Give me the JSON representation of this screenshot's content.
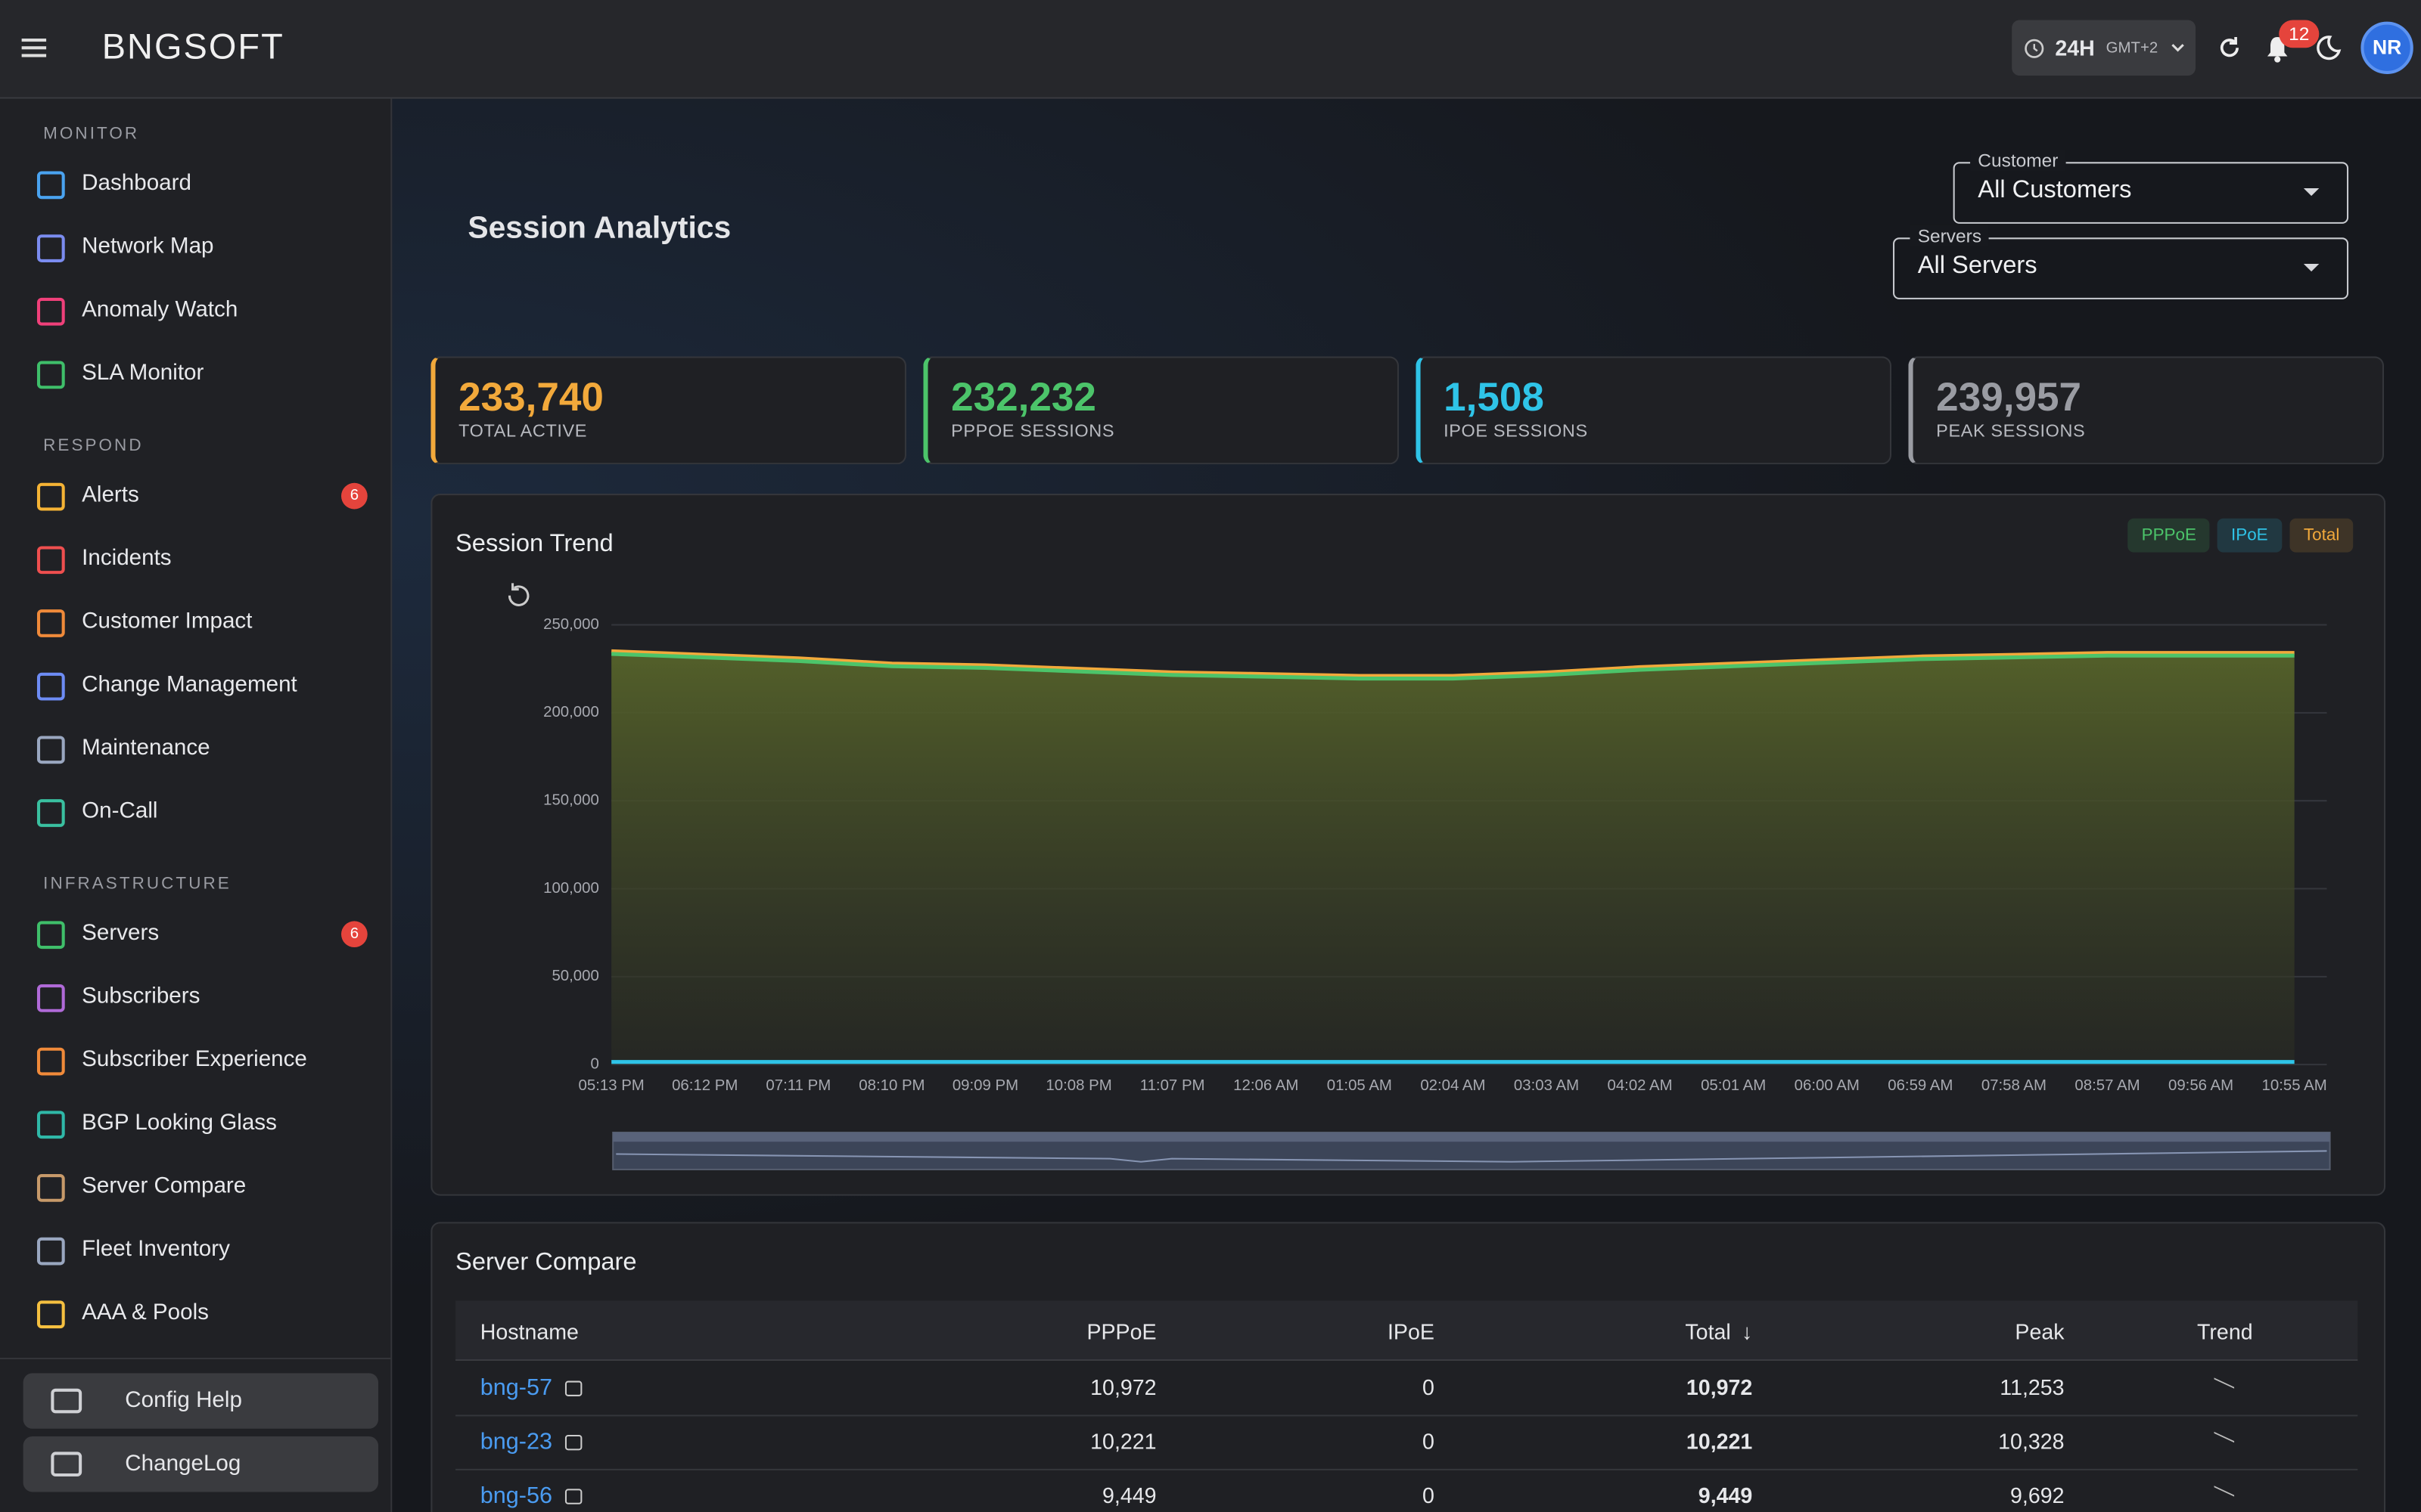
{
  "header": {
    "logo": "BNGSOFT",
    "time_range": "24H",
    "timezone": "GMT+2",
    "notifications": "12",
    "avatar": "NR"
  },
  "sidebar": {
    "sections": [
      {
        "title": "MONITOR",
        "items": [
          {
            "label": "Dashboard"
          },
          {
            "label": "Network Map"
          },
          {
            "label": "Anomaly Watch"
          },
          {
            "label": "SLA Monitor"
          }
        ]
      },
      {
        "title": "RESPOND",
        "items": [
          {
            "label": "Alerts",
            "badge": "6"
          },
          {
            "label": "Incidents"
          },
          {
            "label": "Customer Impact"
          },
          {
            "label": "Change Management"
          },
          {
            "label": "Maintenance"
          },
          {
            "label": "On-Call"
          }
        ]
      },
      {
        "title": "INFRASTRUCTURE",
        "items": [
          {
            "label": "Servers",
            "badge": "6"
          },
          {
            "label": "Subscribers"
          },
          {
            "label": "Subscriber Experience"
          },
          {
            "label": "BGP Looking Glass"
          },
          {
            "label": "Server Compare"
          },
          {
            "label": "Fleet Inventory"
          },
          {
            "label": "AAA & Pools"
          }
        ]
      }
    ],
    "footer": [
      "Config Help",
      "ChangeLog"
    ]
  },
  "page": {
    "title": "Session Analytics",
    "filters": [
      {
        "label": "Customer",
        "value": "All Customers"
      },
      {
        "label": "Servers",
        "value": "All Servers"
      }
    ]
  },
  "stats": [
    {
      "value": "233,740",
      "label": "TOTAL ACTIVE",
      "color": "#f2a93b"
    },
    {
      "value": "232,232",
      "label": "PPPOE SESSIONS",
      "color": "#4cc46a"
    },
    {
      "value": "1,508",
      "label": "IPOE SESSIONS",
      "color": "#2fc4e8"
    },
    {
      "value": "239,957",
      "label": "PEAK SESSIONS",
      "color": "#9a9ca3"
    }
  ],
  "chart_data": {
    "type": "line",
    "title": "Session Trend",
    "categories": [
      "05:13 PM",
      "06:12 PM",
      "07:11 PM",
      "08:10 PM",
      "09:09 PM",
      "10:08 PM",
      "11:07 PM",
      "12:06 AM",
      "01:05 AM",
      "02:04 AM",
      "03:03 AM",
      "04:02 AM",
      "05:01 AM",
      "06:00 AM",
      "06:59 AM",
      "07:58 AM",
      "08:57 AM",
      "09:56 AM",
      "10:55 AM"
    ],
    "series": [
      {
        "name": "PPPoE",
        "color": "#4cc46a",
        "values": [
          233500,
          231500,
          229500,
          226500,
          225500,
          223500,
          221500,
          220500,
          219500,
          219500,
          221500,
          224500,
          226500,
          228500,
          230500,
          231500,
          232500,
          232500,
          232500
        ]
      },
      {
        "name": "IPoE",
        "color": "#2fc4e8",
        "values": [
          1500,
          1500,
          1500,
          1500,
          1500,
          1500,
          1500,
          1500,
          1500,
          1500,
          1500,
          1500,
          1500,
          1500,
          1500,
          1500,
          1500,
          1500,
          1500
        ]
      },
      {
        "name": "Total",
        "color": "#f2a93b",
        "values": [
          235000,
          233000,
          231000,
          228000,
          227000,
          225000,
          223000,
          222000,
          221000,
          221000,
          223000,
          226000,
          228000,
          230000,
          232000,
          233000,
          234000,
          234000,
          234000
        ]
      }
    ],
    "ylim": [
      0,
      250000
    ],
    "yticks": [
      0,
      {
        "value": 50000,
        "label": "50,000"
      },
      {
        "value": 100000,
        "label": "100,000"
      },
      {
        "value": 150000,
        "label": "150,000"
      },
      {
        "value": 200000,
        "label": "200,000"
      },
      {
        "value": 250000,
        "label": "250,000"
      }
    ],
    "grid": true
  },
  "table": {
    "title": "Server Compare",
    "columns": [
      "Hostname",
      "PPPoE",
      "IPoE",
      "Total",
      "Peak",
      "Trend"
    ],
    "rows": [
      [
        "bng-57",
        "10,972",
        "0",
        "10,972",
        "11,253"
      ],
      [
        "bng-23",
        "10,221",
        "0",
        "10,221",
        "10,328"
      ],
      [
        "bng-56",
        "9,449",
        "0",
        "9,449",
        "9,692"
      ]
    ]
  }
}
